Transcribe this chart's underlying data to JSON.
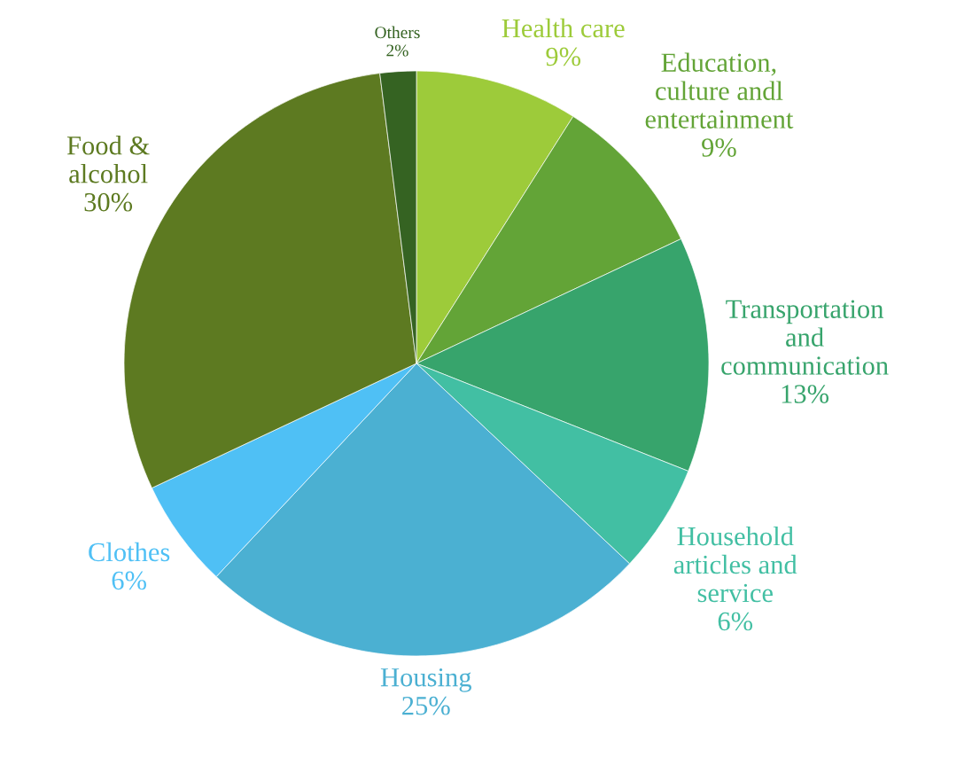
{
  "chart_data": {
    "type": "pie",
    "categories": [
      "Health care",
      "Education, culture andl entertainment",
      "Transportation and communication",
      "Household articles and service",
      "Housing",
      "Clothes",
      "Food & alcohol",
      "Others"
    ],
    "values": [
      9,
      9,
      13,
      6,
      25,
      6,
      30,
      2
    ],
    "colors": [
      "#9dcb3a",
      "#63a437",
      "#37a46c",
      "#42bfa3",
      "#4bb0d2",
      "#4fc0f5",
      "#5d7a21",
      "#356322"
    ],
    "value_labels": [
      "9%",
      "9%",
      "13%",
      "6%",
      "25%",
      "6%",
      "30%",
      "2%"
    ]
  }
}
